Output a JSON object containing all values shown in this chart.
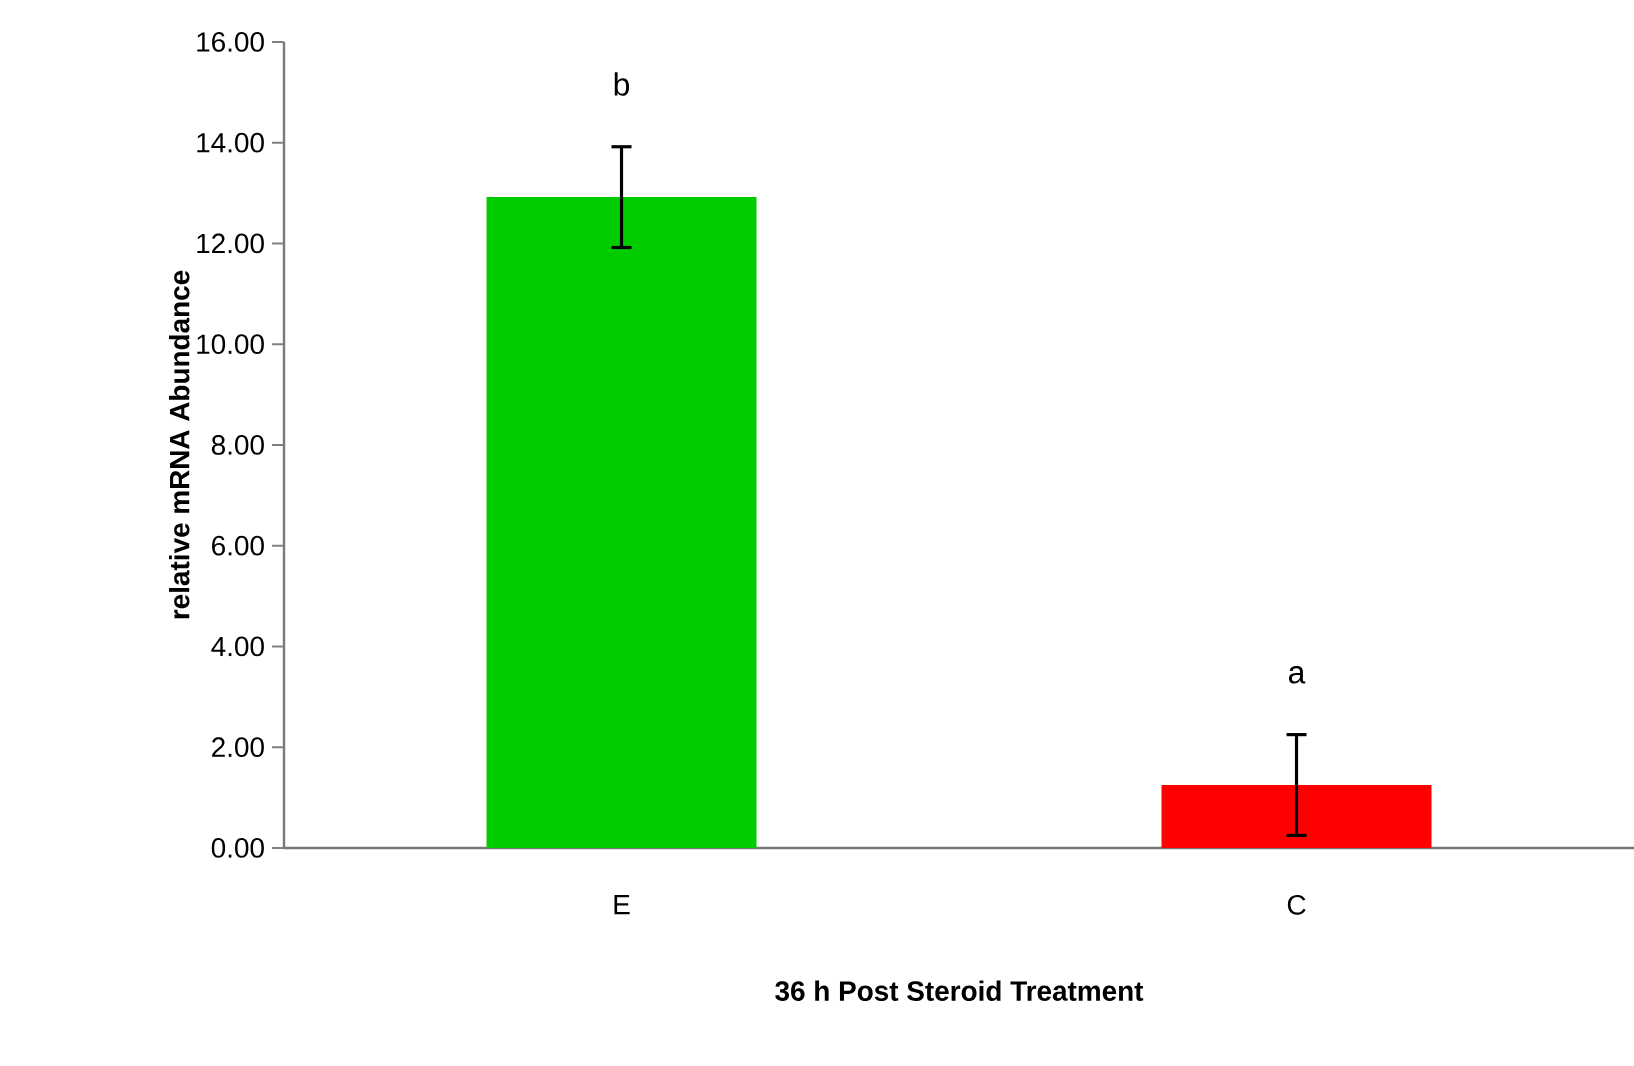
{
  "chart_data": {
    "type": "bar",
    "xlabel": "36 h Post Steroid Treatment",
    "ylabel": "relative mRNA Abundance",
    "categories": [
      "E",
      "C"
    ],
    "values": [
      12.92,
      1.25
    ],
    "colors": [
      "#00cc00",
      "#ff0000"
    ],
    "errors": [
      1.0,
      1.0
    ],
    "ylim": [
      0,
      16
    ],
    "yticks": [
      {
        "value": 0,
        "label": "0.00"
      },
      {
        "value": 2,
        "label": "2.00"
      },
      {
        "value": 4,
        "label": "4.00"
      },
      {
        "value": 6,
        "label": "6.00"
      },
      {
        "value": 8,
        "label": "8.00"
      },
      {
        "value": 10,
        "label": "10.00"
      },
      {
        "value": 12,
        "label": "12.00"
      },
      {
        "value": 14,
        "label": "14.00"
      },
      {
        "value": 16,
        "label": "16.00"
      }
    ],
    "annotations": [
      "b",
      "a"
    ]
  }
}
